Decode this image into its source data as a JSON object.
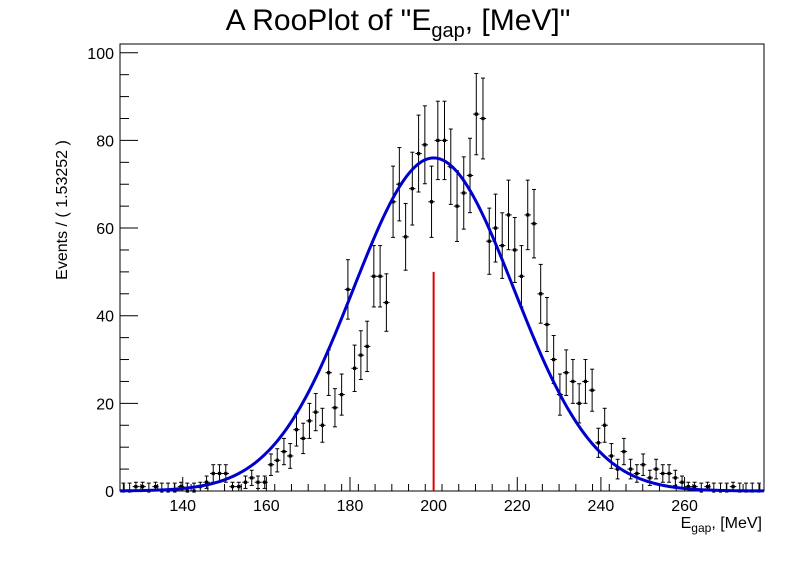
{
  "chart_data": {
    "type": "scatter",
    "title": {
      "main": "A RooPlot of \"E",
      "sub": "gap",
      "tail": ", [MeV]\""
    },
    "xlabel": {
      "main": "E",
      "sub": "gap",
      "tail": ", [MeV]"
    },
    "ylabel": "Events / ( 1.53252 )",
    "xlim": [
      125,
      279
    ],
    "ylim": [
      0,
      102
    ],
    "bin_width": 1.53252,
    "xticks": [
      140,
      160,
      180,
      200,
      220,
      240,
      260
    ],
    "yticks": [
      0,
      20,
      40,
      60,
      80,
      100
    ],
    "grid": false,
    "legend": "none",
    "colors": {
      "data": "#000000",
      "fit": "#0000cc",
      "marker": "#dd0000"
    },
    "fit_curve": {
      "type": "gaussian",
      "amplitude": 76,
      "mean": 200,
      "sigma": 19.2
    },
    "vertical_marker": {
      "x": 200,
      "y": 50
    },
    "series": [
      {
        "x": [
          125.8,
          127.3,
          128.8,
          130.4,
          131.9,
          133.5,
          135.0,
          136.5,
          138.1,
          139.6,
          141.1,
          142.7,
          144.2,
          145.7,
          147.3,
          148.8,
          150.3,
          151.9,
          153.4,
          155.0,
          156.5,
          158.0,
          159.6,
          161.1,
          162.6,
          164.2,
          165.7,
          167.2,
          168.8,
          170.3,
          171.8,
          173.4,
          174.9,
          176.4,
          178.0,
          179.5,
          181.1,
          182.6,
          184.1,
          185.7,
          187.2,
          188.7,
          190.3,
          191.8,
          193.3,
          194.9,
          196.4,
          197.9,
          199.5,
          201.0,
          202.6,
          204.1,
          205.6,
          207.2,
          208.7,
          210.2,
          211.8,
          213.3,
          214.8,
          216.4,
          217.9,
          219.4,
          221.0,
          222.5,
          224.0,
          225.6,
          227.1,
          228.7,
          230.2,
          231.7,
          233.3,
          234.8,
          236.3,
          237.9,
          239.4,
          240.9,
          242.5,
          244.0,
          245.5,
          247.1,
          248.6,
          250.1,
          251.7,
          253.2,
          254.8,
          256.3,
          257.8,
          259.4,
          260.9,
          262.4,
          264.0,
          265.5,
          267.0,
          268.6,
          270.1,
          271.6,
          273.2,
          274.7,
          276.2,
          277.8
        ],
        "y": [
          0,
          0,
          1,
          1,
          0,
          1,
          0,
          0,
          0,
          1,
          0,
          0,
          1,
          2,
          4,
          4,
          4,
          1,
          1,
          2,
          3,
          2,
          2,
          6,
          7,
          9,
          8,
          14,
          12,
          16,
          18,
          15,
          27,
          19,
          22,
          46,
          28,
          31,
          33,
          49,
          49,
          43,
          66,
          70,
          58,
          69,
          77,
          79,
          66,
          80,
          80,
          74,
          65,
          68,
          72,
          86,
          85,
          57,
          60,
          56,
          63,
          55,
          49,
          63,
          61,
          45,
          38,
          30,
          22,
          27,
          25,
          20,
          25,
          23,
          11,
          15,
          8,
          5,
          9,
          5,
          4,
          6,
          3,
          5,
          4,
          4,
          3,
          2,
          1,
          1,
          0,
          1,
          0,
          0,
          0,
          1,
          0,
          0,
          0,
          0
        ]
      }
    ]
  }
}
